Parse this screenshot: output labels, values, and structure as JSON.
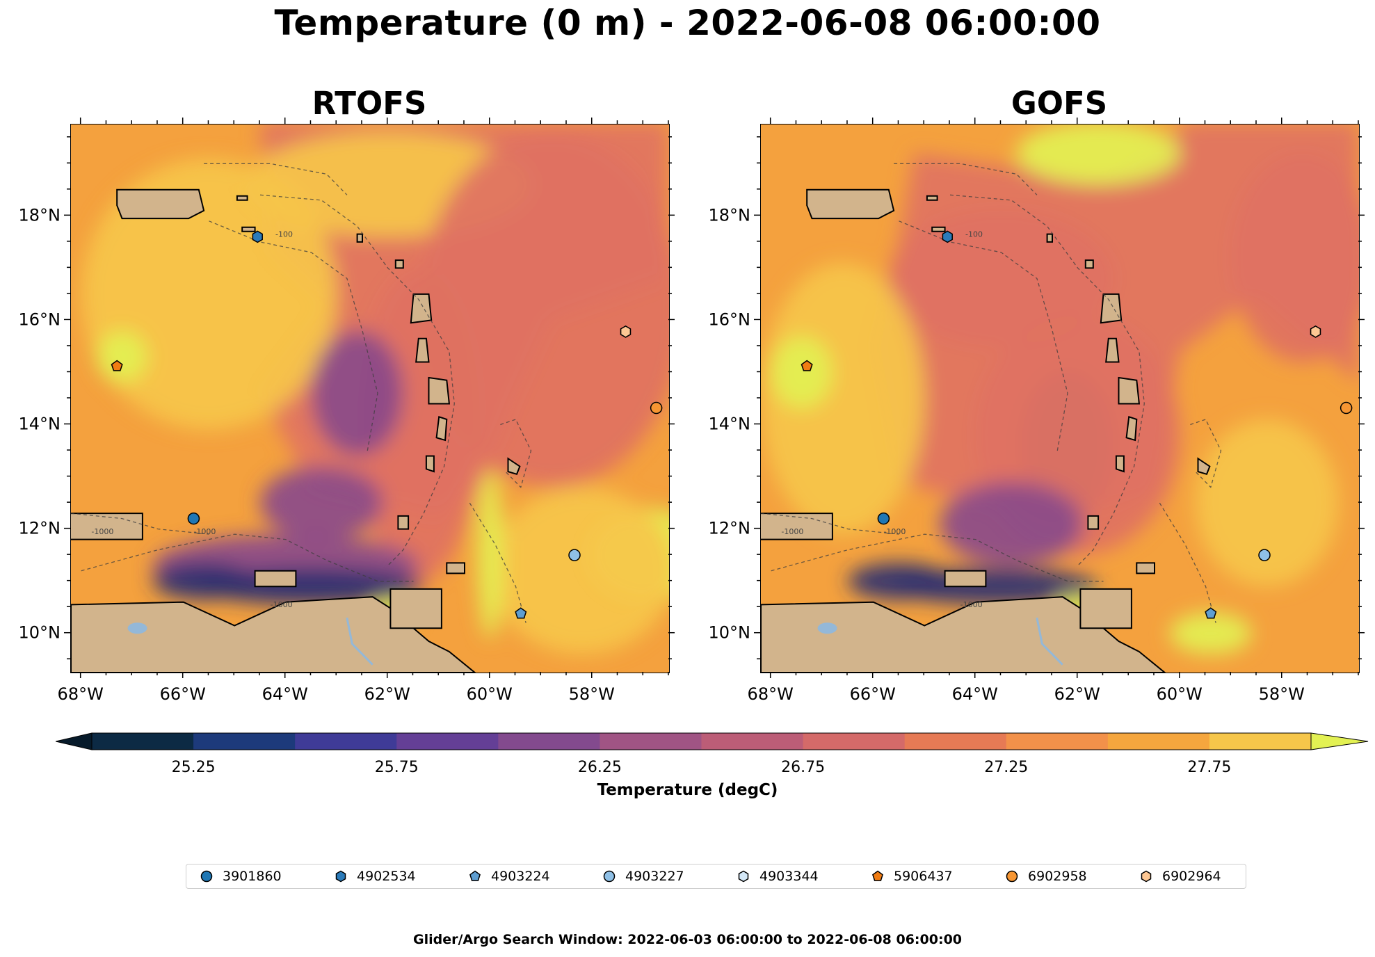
{
  "figure": {
    "suptitle": "Temperature (0 m) - 2022-06-08 06:00:00",
    "footer": "Glider/Argo Search Window: 2022-06-03 06:00:00 to 2022-06-08 06:00:00"
  },
  "panels": [
    {
      "id": "rtofs",
      "title": "RTOFS"
    },
    {
      "id": "gofs",
      "title": "GOFS"
    }
  ],
  "axes": {
    "lon_extent": [
      -68.2,
      -56.5
    ],
    "lat_extent": [
      9.25,
      19.75
    ],
    "x_ticks": [
      {
        "value": -68,
        "label": "68°W"
      },
      {
        "value": -66,
        "label": "66°W"
      },
      {
        "value": -64,
        "label": "64°W"
      },
      {
        "value": -62,
        "label": "62°W"
      },
      {
        "value": -60,
        "label": "60°W"
      },
      {
        "value": -58,
        "label": "58°W"
      }
    ],
    "y_ticks": [
      {
        "value": 10,
        "label": "10°N"
      },
      {
        "value": 12,
        "label": "12°N"
      },
      {
        "value": 14,
        "label": "14°N"
      },
      {
        "value": 16,
        "label": "16°N"
      },
      {
        "value": 18,
        "label": "18°N"
      }
    ]
  },
  "colorbar": {
    "title": "Temperature (degC)",
    "min": 25.0,
    "max": 28.0,
    "step": 0.125,
    "extend": "both",
    "tick_labels": [
      "25.25",
      "25.75",
      "26.25",
      "26.75",
      "27.25",
      "27.75"
    ],
    "colors": [
      "#0c2a44",
      "#1d3a7b",
      "#3f3b97",
      "#643f96",
      "#834a8e",
      "#a05484",
      "#bc5d77",
      "#d46a69",
      "#e67a55",
      "#f2914a",
      "#f5a63e",
      "#f6c64a"
    ],
    "under_color": "#061a2a",
    "over_color": "#e3f153"
  },
  "colors": {
    "land": "#d2b48c",
    "lakes": "#94b8d8",
    "warm_base": "#f4a13e",
    "mid": "#e07262",
    "cool": "#8a4a8a",
    "cold": "#2a2f70",
    "hot": "#f6c64a",
    "very_hot": "#e3f153"
  },
  "legend": {
    "entries": [
      {
        "id": "3901860",
        "marker": "circle",
        "color": "#1f77b4"
      },
      {
        "id": "4902534",
        "marker": "hexagon",
        "color": "#2b7bba"
      },
      {
        "id": "4903224",
        "marker": "pentagon",
        "color": "#5f9ed1"
      },
      {
        "id": "4903227",
        "marker": "circle",
        "color": "#8fc0e6"
      },
      {
        "id": "4903344",
        "marker": "hexagon",
        "color": "#d4e8f7"
      },
      {
        "id": "5906437",
        "marker": "pentagon",
        "color": "#f07c13"
      },
      {
        "id": "6902958",
        "marker": "circle",
        "color": "#f79633"
      },
      {
        "id": "6902964",
        "marker": "hexagon",
        "color": "#fdc793"
      }
    ]
  },
  "floats": [
    {
      "id": "3901860",
      "lon": -65.8,
      "lat": 12.2
    },
    {
      "id": "4902534",
      "lon": -64.55,
      "lat": 17.6
    },
    {
      "id": "4903224",
      "lon": -59.4,
      "lat": 10.38
    },
    {
      "id": "4903227",
      "lon": -58.35,
      "lat": 11.5
    },
    {
      "id": "4903344",
      "lon": -57.35,
      "lat": 15.78
    },
    {
      "id": "5906437",
      "lon": -67.3,
      "lat": 15.12
    },
    {
      "id": "6902958",
      "lon": -56.75,
      "lat": 14.32
    },
    {
      "id": "6902964",
      "lon": -57.35,
      "lat": 15.78
    }
  ],
  "contour_labels": [
    "-1000",
    "-1000",
    "-1000",
    "-100"
  ]
}
